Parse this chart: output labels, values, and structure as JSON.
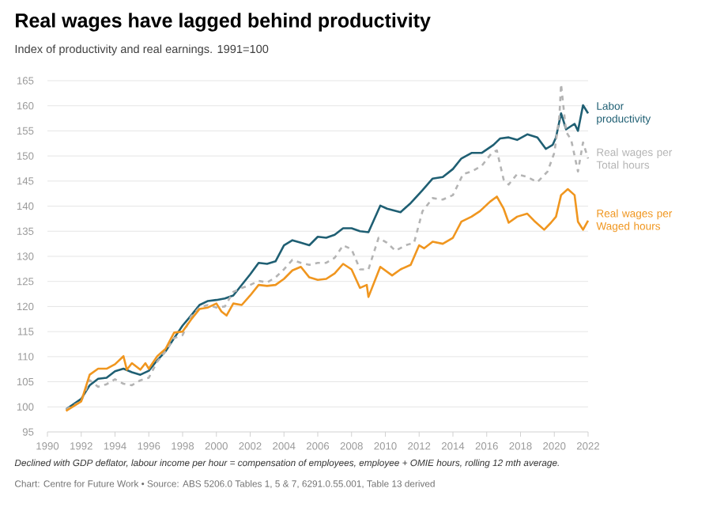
{
  "chart_data": {
    "type": "line",
    "title": "Real wages have lagged behind productivity",
    "subtitle": "Index of productivity and real earnings. 1991=100",
    "annotations": [
      "*Declined with GDP deflator, labour income per hour = compensation of employees, employee + OMIE hours, rolling 12 mth average.*",
      "Chart: Centre for Future Work • Source: ABS 5206.0 Tables 1, 5 & 7, 6291.0.55.001, Table 13 derived"
    ],
    "xlim": [
      1990,
      2022
    ],
    "xticks": [
      1990,
      1992,
      1994,
      1996,
      1998,
      2000,
      2002,
      2004,
      2006,
      2008,
      2010,
      2012,
      2014,
      2016,
      2018,
      2020,
      2022
    ],
    "ylim": [
      95,
      165
    ],
    "yticks": [
      95,
      100,
      105,
      110,
      115,
      120,
      125,
      130,
      135,
      140,
      145,
      150,
      155,
      160,
      165
    ],
    "grid": "y",
    "legend": false,
    "series": [
      {
        "name": "Labor productivity",
        "color": "#1f5f73",
        "line_style": "solid",
        "x": [
          1991.1,
          1992,
          1992.5,
          1993,
          1993.5,
          1994,
          1994.5,
          1995,
          1995.5,
          1996,
          1996.5,
          1997,
          1997.5,
          1998,
          1998.5,
          1999,
          1999.5,
          2000,
          2000.5,
          2001,
          2001.5,
          2002,
          2002.5,
          2003,
          2003.5,
          2004,
          2004.5,
          2005,
          2005.5,
          2006,
          2006.5,
          2007,
          2007.5,
          2008,
          2008.5,
          2009.0,
          2009.7,
          2010.1,
          2010.9,
          2011.5,
          2012.2,
          2012.8,
          2013.4,
          2014.0,
          2014.5,
          2015.1,
          2015.7,
          2016.4,
          2016.8,
          2017.3,
          2017.8,
          2018.4,
          2019.0,
          2019.5,
          2019.9,
          2020.1,
          2020.4,
          2020.7,
          2021.2,
          2021.4,
          2021.7,
          2022.0
        ],
        "values": [
          99.5,
          101.6,
          104.3,
          105.6,
          105.8,
          107.1,
          107.6,
          106.9,
          106.4,
          107.2,
          109.3,
          111.1,
          113.7,
          116.2,
          118.2,
          120.3,
          121.1,
          121.3,
          121.6,
          122.2,
          124.3,
          126.4,
          128.7,
          128.5,
          129.0,
          132.2,
          133.2,
          132.7,
          132.2,
          133.9,
          133.7,
          134.3,
          135.6,
          135.6,
          135.0,
          134.8,
          140.1,
          139.5,
          138.8,
          140.6,
          143.2,
          145.5,
          145.8,
          147.4,
          149.5,
          150.6,
          150.6,
          152.2,
          153.5,
          153.7,
          153.2,
          154.3,
          153.7,
          151.4,
          152.2,
          153.7,
          158.5,
          155.3,
          156.4,
          155.0,
          160.1,
          158.5
        ]
      },
      {
        "name": "Real wages per Total hours",
        "color": "#b4b4b4",
        "line_style": "dashed",
        "x": [
          1991.1,
          1992,
          1992.5,
          1993,
          1993.5,
          1994,
          1994.5,
          1995,
          1995.5,
          1996,
          1996.5,
          1997,
          1997.5,
          1998,
          1998.5,
          1999,
          1999.5,
          2000,
          2000.5,
          2001,
          2001.5,
          2002,
          2002.5,
          2003,
          2003.5,
          2004,
          2004.5,
          2005,
          2005.5,
          2006,
          2006.5,
          2007,
          2007.5,
          2008,
          2008.5,
          2009.0,
          2009.6,
          2010.1,
          2010.6,
          2011.2,
          2011.7,
          2012.2,
          2012.8,
          2013.4,
          2014.0,
          2014.6,
          2015.1,
          2015.7,
          2016.3,
          2016.6,
          2017.0,
          2017.3,
          2017.8,
          2018.4,
          2019.0,
          2019.6,
          2020.0,
          2020.3,
          2020.4,
          2020.7,
          2021.0,
          2021.4,
          2021.7,
          2022.0
        ],
        "values": [
          99.5,
          101.1,
          105.3,
          104.0,
          104.5,
          105.5,
          104.6,
          104.3,
          105.3,
          105.8,
          109.0,
          111.1,
          113.7,
          114.3,
          118.0,
          119.8,
          120.3,
          119.8,
          120.0,
          122.9,
          123.7,
          124.3,
          125.1,
          124.8,
          125.8,
          127.4,
          129.3,
          128.7,
          128.3,
          128.7,
          128.7,
          129.7,
          132.2,
          131.4,
          127.4,
          127.4,
          133.7,
          132.7,
          131.1,
          132.2,
          132.7,
          139.0,
          141.6,
          141.3,
          142.2,
          146.4,
          146.9,
          148.0,
          150.6,
          151.1,
          145.3,
          144.3,
          146.4,
          145.8,
          144.8,
          146.9,
          150.6,
          157.9,
          164.3,
          154.8,
          153.2,
          146.9,
          152.7,
          149.5
        ]
      },
      {
        "name": "Real wages per Waged hours",
        "color": "#f0961f",
        "line_style": "solid",
        "x": [
          1991.1,
          1992,
          1992.5,
          1993,
          1993.5,
          1994,
          1994.5,
          1994.7,
          1995,
          1995.5,
          1995.8,
          1996,
          1996.5,
          1997,
          1997.5,
          1998,
          1998.5,
          1999,
          1999.5,
          2000,
          2000.3,
          2000.6,
          2001,
          2001.5,
          2002,
          2002.5,
          2003,
          2003.5,
          2004,
          2004.5,
          2005,
          2005.5,
          2006,
          2006.5,
          2007,
          2007.5,
          2008,
          2008.5,
          2008.9,
          2009.0,
          2009.7,
          2010.4,
          2010.9,
          2011.5,
          2012.0,
          2012.3,
          2012.8,
          2013.4,
          2014.0,
          2014.5,
          2015.1,
          2015.6,
          2016.2,
          2016.6,
          2017.0,
          2017.3,
          2017.8,
          2018.4,
          2018.8,
          2019.4,
          2019.8,
          2020.1,
          2020.4,
          2020.8,
          2021.2,
          2021.4,
          2021.7,
          2022.0
        ],
        "values": [
          99.2,
          101.1,
          106.4,
          107.6,
          107.6,
          108.5,
          110.1,
          107.4,
          108.7,
          107.4,
          108.7,
          107.6,
          110.1,
          111.6,
          114.8,
          115.0,
          117.4,
          119.5,
          119.8,
          120.6,
          119.0,
          118.2,
          120.6,
          120.3,
          122.2,
          124.3,
          124.1,
          124.3,
          125.5,
          127.2,
          127.9,
          125.8,
          125.3,
          125.5,
          126.6,
          128.5,
          127.4,
          123.7,
          124.3,
          121.9,
          127.9,
          126.2,
          127.4,
          128.3,
          132.2,
          131.6,
          132.9,
          132.5,
          133.7,
          136.9,
          137.9,
          139.0,
          140.9,
          141.9,
          139.5,
          136.7,
          137.9,
          138.5,
          137.1,
          135.3,
          136.7,
          137.9,
          142.2,
          143.4,
          142.2,
          136.9,
          135.3,
          137.1
        ]
      }
    ]
  }
}
